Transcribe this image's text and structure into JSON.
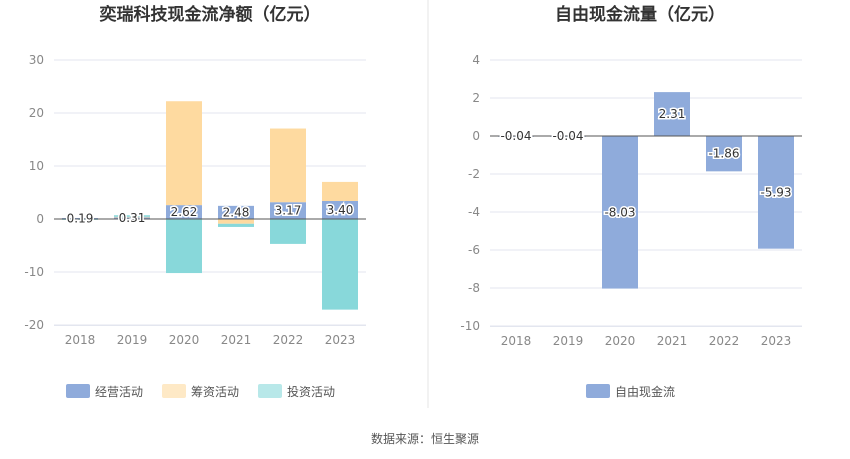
{
  "chart_data": [
    {
      "type": "bar",
      "stacked": true,
      "title": "奕瑞科技现金流净额（亿元）",
      "categories": [
        "2018",
        "2019",
        "2020",
        "2021",
        "2022",
        "2023"
      ],
      "ylim": [
        -20,
        30
      ],
      "yticks": [
        -20,
        -10,
        0,
        10,
        20,
        30
      ],
      "grid": true,
      "legend_position": "bottom",
      "series": [
        {
          "name": "经营活动",
          "values": [
            0.19,
            0.31,
            2.62,
            2.48,
            3.17,
            3.4
          ],
          "color": "#8fabdb",
          "labels": [
            "0.19",
            "0.31",
            "2.62",
            "2.48",
            "3.17",
            "3.40"
          ]
        },
        {
          "name": "筹资活动",
          "values": [
            -0.05,
            0.1,
            19.6,
            -0.9,
            13.9,
            3.6
          ],
          "color": "#fedaa0"
        },
        {
          "name": "投资活动",
          "values": [
            -0.1,
            0.3,
            -10.2,
            -0.6,
            -4.7,
            -17.1
          ],
          "color": "#88d8da"
        }
      ]
    },
    {
      "type": "bar",
      "title": "自由现金流量（亿元）",
      "categories": [
        "2018",
        "2019",
        "2020",
        "2021",
        "2022",
        "2023"
      ],
      "ylim": [
        -10,
        4
      ],
      "yticks": [
        -10,
        -8,
        -6,
        -4,
        -2,
        0,
        2,
        4
      ],
      "grid": true,
      "legend_position": "bottom",
      "series": [
        {
          "name": "自由现金流",
          "values": [
            -0.04,
            -0.04,
            -8.03,
            2.31,
            -1.86,
            -5.93
          ],
          "color": "#8fabdb",
          "labels": [
            "-0.04",
            "-0.04",
            "-8.03",
            "2.31",
            "-1.86",
            "-5.93"
          ]
        }
      ]
    }
  ],
  "source_text": "数据来源：恒生聚源"
}
